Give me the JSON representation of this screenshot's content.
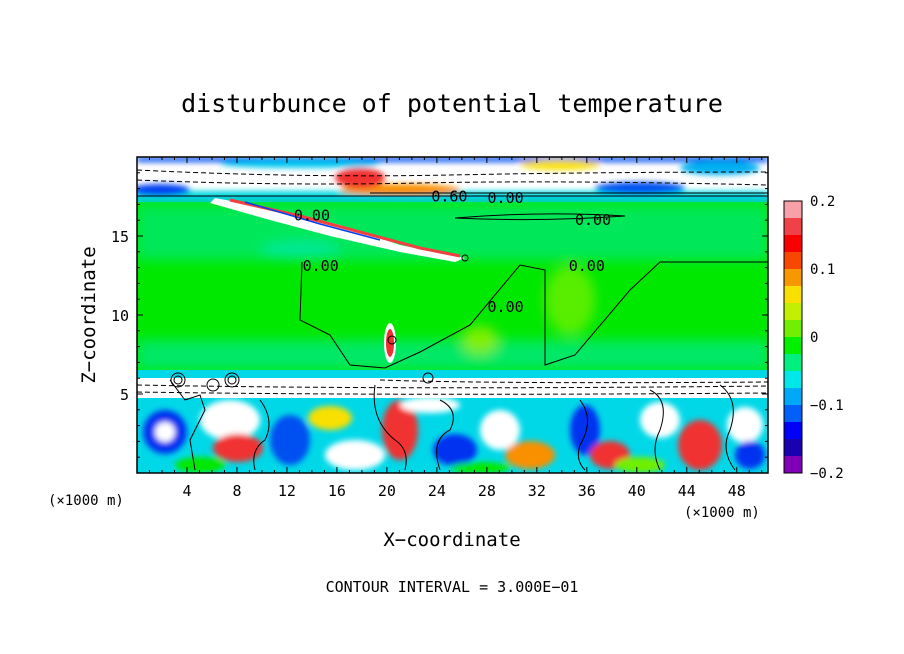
{
  "chart_data": {
    "type": "heatmap",
    "title": "disturbunce of potential temperature",
    "xlabel": "X−coordinate",
    "ylabel": "Z−coordinate",
    "x_unit": "(×1000 m)",
    "z_unit": "(×1000 m)",
    "xlim": [
      0,
      50.5
    ],
    "ylim": [
      0,
      20
    ],
    "x_ticks": [
      4,
      8,
      12,
      16,
      20,
      24,
      28,
      32,
      36,
      40,
      44,
      48
    ],
    "y_ticks": [
      5,
      10,
      15
    ],
    "colorbar": {
      "range": [
        -0.2,
        0.2
      ],
      "tick_values": [
        0.2,
        0.1,
        0,
        -0.1,
        -0.2
      ],
      "tick_labels": [
        "0.2",
        "0.1",
        "0",
        "−0.1",
        "−0.2"
      ],
      "colors": [
        "#f8a0a8",
        "#f04048",
        "#f80000",
        "#f84800",
        "#f89800",
        "#f8e000",
        "#c0f000",
        "#70f000",
        "#00f000",
        "#00f080",
        "#00e8e8",
        "#00a8f8",
        "#0060f8",
        "#0000f8",
        "#1800b0",
        "#8000b8"
      ]
    },
    "contour_labels": [
      {
        "text": "0.60",
        "x": 25.0,
        "z": 17.5
      },
      {
        "text": "0.00",
        "x": 29.5,
        "z": 17.4
      },
      {
        "text": "0.00",
        "x": 14.0,
        "z": 16.3
      },
      {
        "text": "0.00",
        "x": 36.5,
        "z": 16.0
      },
      {
        "text": "0.00",
        "x": 14.7,
        "z": 13.1
      },
      {
        "text": "0.00",
        "x": 36.0,
        "z": 13.1
      },
      {
        "text": "0.00",
        "x": 29.5,
        "z": 10.5
      }
    ],
    "contour_interval_label": "CONTOUR INTERVAL = 3.000E−01"
  }
}
